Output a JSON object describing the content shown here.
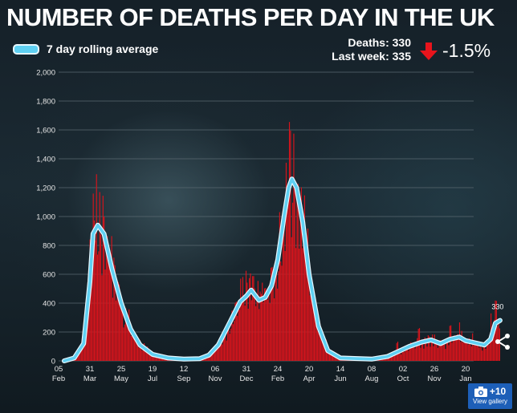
{
  "header": {
    "title": "NUMBER OF DEATHS PER DAY IN THE UK",
    "legend_label": "7 day rolling average",
    "deaths_line": "Deaths: 330",
    "last_week_line": "Last week: 335",
    "change": "-1.5%",
    "arrow_icon": "down-arrow-icon"
  },
  "gallery": {
    "count": "+10",
    "label": "View gallery",
    "icon": "camera-icon"
  },
  "share_icon": "share-icon",
  "colors": {
    "bars": "#d8141c",
    "line": "#5fd0f2",
    "line_edge": "#e8f8ff",
    "arrow": "#e8141c",
    "grid": "#5a6870"
  },
  "chart_data": {
    "type": "bar",
    "title": "NUMBER OF DEATHS PER DAY IN THE UK",
    "xlabel": "",
    "ylabel": "",
    "ylim": [
      0,
      2000
    ],
    "yticks": [
      "0",
      "200",
      "400",
      "600",
      "800",
      "1,000",
      "1,200",
      "1,400",
      "1,600",
      "1,800",
      "2,000"
    ],
    "xticks": [
      {
        "day": "05",
        "month": "Feb"
      },
      {
        "day": "31",
        "month": "Mar"
      },
      {
        "day": "25",
        "month": "May"
      },
      {
        "day": "19",
        "month": "Jul"
      },
      {
        "day": "12",
        "month": "Sep"
      },
      {
        "day": "06",
        "month": "Nov"
      },
      {
        "day": "31",
        "month": "Dec"
      },
      {
        "day": "24",
        "month": "Feb"
      },
      {
        "day": "20",
        "month": "Apr"
      },
      {
        "day": "14",
        "month": "Jun"
      },
      {
        "day": "08",
        "month": "Aug"
      },
      {
        "day": "02",
        "month": "Oct"
      },
      {
        "day": "26",
        "month": "Nov"
      },
      {
        "day": "20",
        "month": "Jan"
      }
    ],
    "grid": true,
    "annotation": "330",
    "series": [
      {
        "name": "7 day rolling average",
        "kind": "line",
        "points": [
          [
            0.18,
            0
          ],
          [
            0.5,
            20
          ],
          [
            0.8,
            120
          ],
          [
            1.0,
            550
          ],
          [
            1.1,
            880
          ],
          [
            1.25,
            940
          ],
          [
            1.45,
            880
          ],
          [
            1.7,
            640
          ],
          [
            2.0,
            400
          ],
          [
            2.3,
            220
          ],
          [
            2.6,
            110
          ],
          [
            3.0,
            45
          ],
          [
            3.5,
            20
          ],
          [
            4.0,
            12
          ],
          [
            4.5,
            15
          ],
          [
            4.8,
            40
          ],
          [
            5.1,
            110
          ],
          [
            5.5,
            280
          ],
          [
            5.8,
            410
          ],
          [
            6.0,
            450
          ],
          [
            6.15,
            490
          ],
          [
            6.4,
            420
          ],
          [
            6.6,
            440
          ],
          [
            6.8,
            520
          ],
          [
            7.0,
            700
          ],
          [
            7.2,
            1000
          ],
          [
            7.35,
            1200
          ],
          [
            7.45,
            1260
          ],
          [
            7.6,
            1200
          ],
          [
            7.8,
            960
          ],
          [
            8.0,
            600
          ],
          [
            8.3,
            240
          ],
          [
            8.6,
            70
          ],
          [
            9.0,
            20
          ],
          [
            10.0,
            12
          ],
          [
            10.5,
            30
          ],
          [
            10.8,
            60
          ],
          [
            11.2,
            100
          ],
          [
            11.6,
            130
          ],
          [
            11.9,
            145
          ],
          [
            12.2,
            120
          ],
          [
            12.5,
            150
          ],
          [
            12.8,
            165
          ],
          [
            13.0,
            140
          ],
          [
            13.3,
            125
          ],
          [
            13.6,
            110
          ],
          [
            13.8,
            150
          ],
          [
            13.95,
            260
          ],
          [
            14.1,
            280
          ]
        ]
      },
      {
        "name": "Deaths per day",
        "kind": "bars",
        "peaks": [
          [
            1.0,
            900
          ],
          [
            1.12,
            1120
          ],
          [
            1.3,
            1230
          ],
          [
            1.6,
            800
          ],
          [
            2.0,
            460
          ],
          [
            5.8,
            600
          ],
          [
            6.1,
            600
          ],
          [
            6.5,
            560
          ],
          [
            6.8,
            660
          ],
          [
            7.15,
            1150
          ],
          [
            7.35,
            1820
          ],
          [
            7.5,
            1600
          ],
          [
            7.8,
            1050
          ],
          [
            8.1,
            500
          ],
          [
            10.8,
            140
          ],
          [
            11.5,
            230
          ],
          [
            12.0,
            210
          ],
          [
            12.5,
            270
          ],
          [
            12.8,
            290
          ],
          [
            13.2,
            200
          ],
          [
            13.8,
            340
          ],
          [
            13.95,
            420
          ],
          [
            14.1,
            440
          ]
        ]
      }
    ]
  }
}
